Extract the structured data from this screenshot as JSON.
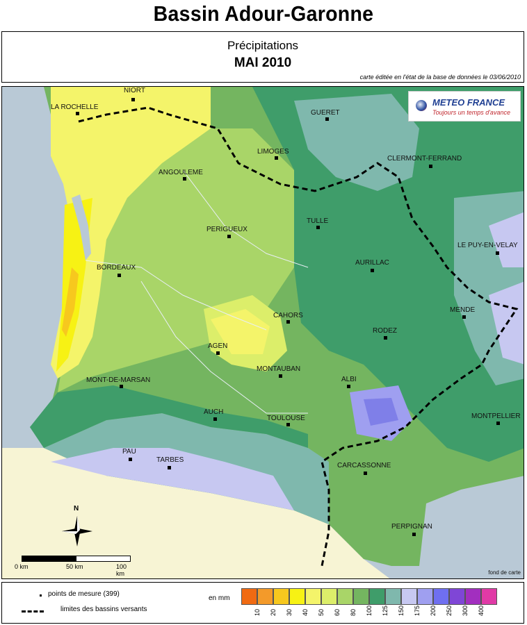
{
  "header": {
    "title": "Bassin Adour-Garonne",
    "subtitle": "Précipitations",
    "period": "MAI 2010",
    "edition_note": "carte éditée en l'état de la base de données le 03/06/2010"
  },
  "logo": {
    "name": "METEO FRANCE",
    "tagline": "Toujours un temps d'avance"
  },
  "map": {
    "credit": "fond de carte",
    "cities": [
      {
        "name": "NIORT"
      },
      {
        "name": "LA ROCHELLE"
      },
      {
        "name": "GUERET"
      },
      {
        "name": "LIMOGES"
      },
      {
        "name": "CLERMONT-FERRAND"
      },
      {
        "name": "ANGOULEME"
      },
      {
        "name": "TULLE"
      },
      {
        "name": "PERIGUEUX"
      },
      {
        "name": "LE PUY-EN-VELAY"
      },
      {
        "name": "BORDEAUX"
      },
      {
        "name": "AURILLAC"
      },
      {
        "name": "MENDE"
      },
      {
        "name": "CAHORS"
      },
      {
        "name": "RODEZ"
      },
      {
        "name": "AGEN"
      },
      {
        "name": "MONTAUBAN"
      },
      {
        "name": "MONT-DE-MARSAN"
      },
      {
        "name": "ALBI"
      },
      {
        "name": "AUCH"
      },
      {
        "name": "TOULOUSE"
      },
      {
        "name": "MONTPELLIER"
      },
      {
        "name": "PAU"
      },
      {
        "name": "TARBES"
      },
      {
        "name": "CARCASSONNE"
      },
      {
        "name": "PERPIGNAN"
      }
    ],
    "scale": {
      "labels": [
        "0 km",
        "50 km",
        "100 km"
      ]
    },
    "north_label": "N"
  },
  "legend": {
    "points_label": "points de mesure (399)",
    "limits_label": "limites des bassins versants",
    "unit": "en mm",
    "thresholds": [
      "10",
      "20",
      "30",
      "40",
      "50",
      "60",
      "80",
      "100",
      "125",
      "150",
      "175",
      "200",
      "250",
      "300",
      "400"
    ],
    "colors": [
      "#f06a12",
      "#f39a2a",
      "#f7c81e",
      "#f7f214",
      "#f4f46a",
      "#dcee6a",
      "#a9d568",
      "#74b560",
      "#3f9d6a",
      "#7fb8ad",
      "#c7c8f1",
      "#9f9ff0",
      "#6f6ff0",
      "#7f46d6",
      "#a22fbf",
      "#e03aa6"
    ]
  }
}
